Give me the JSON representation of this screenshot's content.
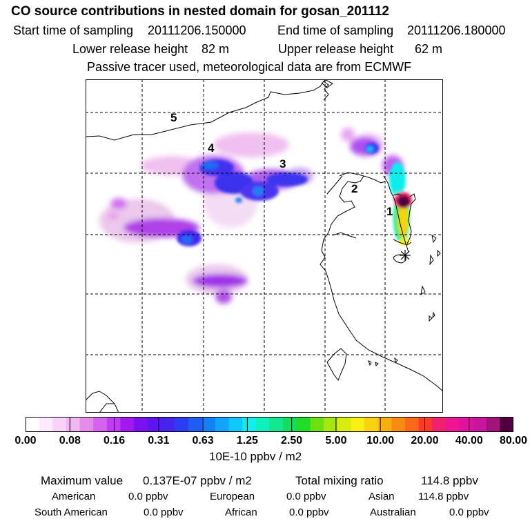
{
  "title": "CO  source contributions in nested domain for gosan_201112",
  "header": {
    "start_label": "Start time of sampling",
    "start_value": "20111206.150000",
    "end_label": "End time of sampling",
    "end_value": "20111206.180000",
    "lower_label": "Lower release height",
    "lower_value": "82 m",
    "upper_label": "Upper release height",
    "upper_value": "62 m",
    "note": "Passive tracer used, meteorological data are from ECMWF"
  },
  "map": {
    "region_labels": [
      "1",
      "2",
      "3",
      "4",
      "5"
    ],
    "receptor_marker": "asterisk-icon"
  },
  "colorbar": {
    "ticks": [
      "0.00",
      "0.08",
      "0.16",
      "0.31",
      "0.63",
      "1.25",
      "2.50",
      "5.00",
      "10.00",
      "20.00",
      "40.00",
      "80.00"
    ],
    "colors": [
      "#ffffff",
      "#fcebfc",
      "#f8d2f8",
      "#f0b8f0",
      "#e48ce8",
      "#d364ee",
      "#c03cf0",
      "#a018f0",
      "#7a10ee",
      "#5c14f0",
      "#4424f0",
      "#2c3cf0",
      "#1e5cf4",
      "#1480f8",
      "#10a4fc",
      "#10c8fc",
      "#10eeec",
      "#10f0bc",
      "#10e890",
      "#10e060",
      "#20dc28",
      "#6ce010",
      "#a8e610",
      "#d8ec10",
      "#f8f010",
      "#f8d410",
      "#f8b010",
      "#f88c10",
      "#f86818",
      "#f83c28",
      "#f0206c",
      "#f01490",
      "#e0149c",
      "#c8149c",
      "#a0147c",
      "#50003c"
    ],
    "units": "10E-10 ppbv / m2"
  },
  "footer": {
    "max_label": "Maximum value",
    "max_value": "0.137E-07 ppbv / m2",
    "total_label": "Total mixing ratio",
    "total_value": "114.8 ppbv",
    "american_label": "American",
    "american_value": "0.0 ppbv",
    "european_label": "European",
    "european_value": "0.0 ppbv",
    "asian_label": "Asian",
    "asian_value": "114.8 ppbv",
    "south_american_label": "South American",
    "south_american_value": "0.0 ppbv",
    "african_label": "African",
    "african_value": "0.0 ppbv",
    "australian_label": "Australian",
    "australian_value": "0.0 ppbv"
  }
}
